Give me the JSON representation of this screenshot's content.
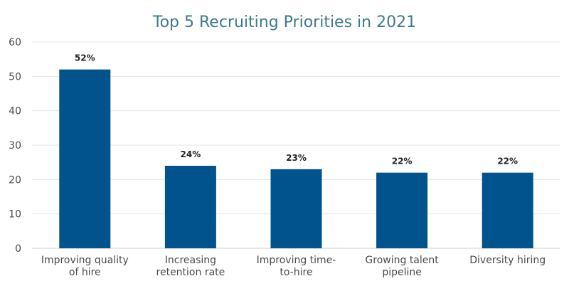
{
  "chart_data": {
    "type": "bar",
    "title": "Top 5 Recruiting Priorities in 2021",
    "xlabel": "",
    "ylabel": "",
    "ylim": [
      0,
      60
    ],
    "yticks": [
      "0",
      "10",
      "20",
      "30",
      "40",
      "50",
      "60"
    ],
    "categories": [
      [
        "Improving quality",
        "of hire"
      ],
      [
        "Increasing",
        "retention rate"
      ],
      [
        "Improving time-",
        "to-hire"
      ],
      [
        "Growing talent",
        "pipeline"
      ],
      [
        "Diversity hiring"
      ]
    ],
    "values": [
      52,
      24,
      23,
      22,
      22
    ],
    "data_labels": [
      "52%",
      "24%",
      "23%",
      "22%",
      "22%"
    ],
    "grid": true,
    "bar_color": "#00538c",
    "title_color": "#3d7a8e"
  }
}
